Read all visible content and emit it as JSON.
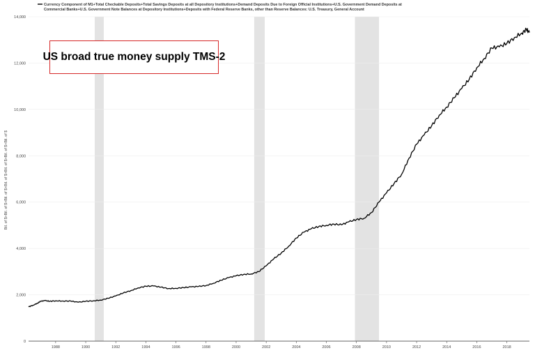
{
  "chart_data": {
    "type": "line",
    "title": "US broad true money supply TMS-2",
    "legend": "Currency Component of M1+Total Checkable Deposits+Total Savings Deposits at all Depository Institutions+Demand Deposits Due to Foreign Official Institutions+U.S. Government Demand Deposits at Commercial Banks+U.S. Government Note Balances at Depository Institutions+Deposits with Federal Reserve Banks, other than Reserve Balances: U.S. Treasury, General Account",
    "legend_placement": "top-left",
    "ylabel": "Bil. of $+Bil. of $+Bil. of $+Bil. of $+Bil. of $+Bil. of $+Bil. of $",
    "xlabel": "",
    "ylim": [
      0,
      14000
    ],
    "xlim": [
      1986.2,
      2019.5
    ],
    "yticks": [
      "0",
      "2,000",
      "4,000",
      "6,000",
      "8,000",
      "10,000",
      "12,000",
      "14,000"
    ],
    "xticks": [
      "1988",
      "1990",
      "1992",
      "1994",
      "1996",
      "1998",
      "2000",
      "2002",
      "2004",
      "2006",
      "2008",
      "2010",
      "2012",
      "2014",
      "2016",
      "2018"
    ],
    "grid": "horizontal",
    "recessions": [
      [
        1990.6,
        1991.2
      ],
      [
        2001.2,
        2001.9
      ],
      [
        2007.9,
        2009.5
      ]
    ],
    "series": [
      {
        "x": [
          1986.2,
          1986.5,
          1986.8,
          1987.0,
          1987.3,
          1987.6,
          1988.0,
          1988.5,
          1989.0,
          1989.5,
          1990.0,
          1990.5,
          1991.0,
          1991.5,
          1992.0,
          1992.5,
          1993.0,
          1993.5,
          1994.0,
          1994.5,
          1995.0,
          1995.5,
          1996.0,
          1996.5,
          1997.0,
          1997.5,
          1998.0,
          1998.5,
          1999.0,
          1999.5,
          2000.0,
          2000.5,
          2001.0,
          2001.5,
          2002.0,
          2002.5,
          2003.0,
          2003.5,
          2004.0,
          2004.5,
          2005.0,
          2005.5,
          2006.0,
          2006.5,
          2007.0,
          2007.5,
          2008.0,
          2008.5,
          2009.0,
          2009.5,
          2010.0,
          2010.5,
          2011.0,
          2011.5,
          2012.0,
          2012.5,
          2013.0,
          2013.5,
          2014.0,
          2014.5,
          2015.0,
          2015.5,
          2016.0,
          2016.5,
          2017.0,
          2017.5,
          2018.0,
          2018.5,
          2019.0,
          2019.3,
          2019.5
        ],
        "y": [
          1480,
          1550,
          1640,
          1720,
          1750,
          1720,
          1740,
          1730,
          1730,
          1680,
          1720,
          1740,
          1770,
          1850,
          1950,
          2080,
          2180,
          2300,
          2370,
          2380,
          2330,
          2270,
          2280,
          2310,
          2340,
          2360,
          2400,
          2500,
          2630,
          2740,
          2820,
          2880,
          2900,
          3000,
          3250,
          3550,
          3800,
          4100,
          4450,
          4700,
          4850,
          4950,
          5000,
          5050,
          5020,
          5150,
          5250,
          5300,
          5550,
          6000,
          6400,
          6800,
          7200,
          7900,
          8500,
          8900,
          9300,
          9750,
          10100,
          10500,
          10900,
          11300,
          11800,
          12200,
          12650,
          12700,
          12850,
          13100,
          13300,
          13450,
          13320
        ]
      }
    ]
  }
}
